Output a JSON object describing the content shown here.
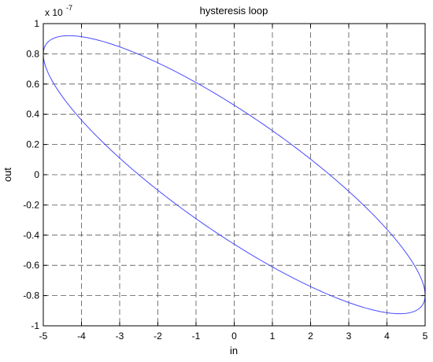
{
  "chart_data": {
    "type": "line",
    "title": "hysteresis loop",
    "xlabel": "in",
    "ylabel": "out",
    "y_exponent_label": "x 10",
    "y_exponent_power": "-7",
    "xlim": [
      -5,
      5
    ],
    "ylim": [
      -1,
      1
    ],
    "grid": true,
    "x_ticks": [
      -5,
      -4,
      -3,
      -2,
      -1,
      0,
      1,
      2,
      3,
      4,
      5
    ],
    "x_tick_labels": [
      "-5",
      "-4",
      "-3",
      "-2",
      "-1",
      "0",
      "1",
      "2",
      "3",
      "4",
      "5"
    ],
    "y_ticks": [
      -1,
      -0.8,
      -0.6,
      -0.4,
      -0.2,
      0,
      0.2,
      0.4,
      0.6,
      0.8,
      1
    ],
    "y_tick_labels": [
      "-1",
      "-0.8",
      "-0.6",
      "-0.4",
      "-0.2",
      "0",
      "0.2",
      "0.4",
      "0.6",
      "0.8",
      "1"
    ],
    "series": [
      {
        "color": "#4a4aff",
        "parametric": {
          "x_amplitude": 5,
          "y_amplitude": 0.92,
          "phase_offset_deg": 150
        }
      }
    ]
  }
}
